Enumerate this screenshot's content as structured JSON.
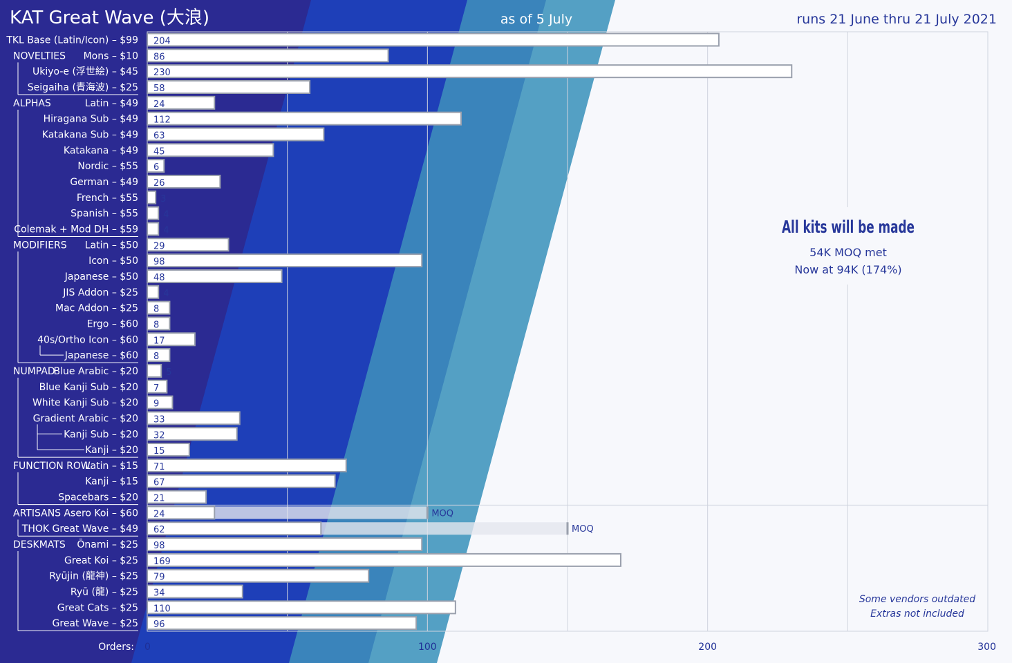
{
  "header": {
    "title": "KAT Great Wave (大浪)",
    "as_of": "as of 5 July",
    "run_dates": "runs 21 June thru 21 July 2021"
  },
  "notes": {
    "headline": "All kits will be made",
    "moq_line1": "54K MOQ met",
    "moq_line2": "Now at 94K (174%)",
    "vendor_line1": "Some vendors outdated",
    "vendor_line2": "Extras not included"
  },
  "colors": {
    "bg_dark": "#2b2a92",
    "band_blue": "#1e3fb8",
    "band_mid": "#3a84bb",
    "band_light": "#54a0c4",
    "plot_bg": "#f7f8fc",
    "bar_fill": "#ffffff",
    "bar_border": "#9aa0ad",
    "text_blue": "#27379a"
  },
  "chart_data": {
    "type": "bar",
    "orientation": "horizontal",
    "xlabel": "Orders:",
    "xlim": [
      0,
      300
    ],
    "xticks": [
      0,
      100,
      200,
      300
    ],
    "grid": true,
    "categories": [
      {
        "group": "",
        "label": "TKL Base (Latin/Icon) – $99",
        "value": 204
      },
      {
        "group": "NOVELTIES",
        "label": "Mons – $10",
        "value": 86
      },
      {
        "group": "",
        "label": "Ukiyo-e (浮世絵) – $45",
        "value": 230
      },
      {
        "group": "",
        "label": "Seigaiha (青海波) – $25",
        "value": 58
      },
      {
        "group": "ALPHAS",
        "label": "Latin – $49",
        "value": 24
      },
      {
        "group": "",
        "label": "Hiragana Sub – $49",
        "value": 112
      },
      {
        "group": "",
        "label": "Katakana Sub – $49",
        "value": 63
      },
      {
        "group": "",
        "label": "Katakana – $49",
        "value": 45
      },
      {
        "group": "",
        "label": "Nordic – $55",
        "value": 6
      },
      {
        "group": "",
        "label": "German – $49",
        "value": 26
      },
      {
        "group": "",
        "label": "French – $55",
        "value": 3
      },
      {
        "group": "",
        "label": "Spanish – $55",
        "value": 4
      },
      {
        "group": "",
        "label": "Colemak + Mod DH – $59",
        "value": 4
      },
      {
        "group": "MODIFIERS",
        "label": "Latin – $50",
        "value": 29
      },
      {
        "group": "",
        "label": "Icon – $50",
        "value": 98
      },
      {
        "group": "",
        "label": "Japanese – $50",
        "value": 48
      },
      {
        "group": "",
        "label": "JIS Addon – $25",
        "value": 4
      },
      {
        "group": "",
        "label": "Mac Addon – $25",
        "value": 8
      },
      {
        "group": "",
        "label": "Ergo – $60",
        "value": 8
      },
      {
        "group": "",
        "label": "40s/Ortho  Icon – $60",
        "value": 17
      },
      {
        "group": "",
        "label": "Japanese – $60",
        "value": 8
      },
      {
        "group": "NUMPAD",
        "label": "Blue Arabic – $20",
        "value": 5
      },
      {
        "group": "",
        "label": "Blue Kanji Sub – $20",
        "value": 7
      },
      {
        "group": "",
        "label": "White Kanji Sub – $20",
        "value": 9
      },
      {
        "group": "",
        "label": "Gradient  Arabic – $20",
        "value": 33
      },
      {
        "group": "",
        "label": "Kanji Sub – $20",
        "value": 32
      },
      {
        "group": "",
        "label": "Kanji – $20",
        "value": 15
      },
      {
        "group": "FUNCTION ROW",
        "label": "Latin – $15",
        "value": 71
      },
      {
        "group": "",
        "label": "Kanji – $15",
        "value": 67
      },
      {
        "group": "",
        "label": "Spacebars – $20",
        "value": 21
      },
      {
        "group": "ARTISANS",
        "label": "Asero Koi – $60",
        "value": 24,
        "moq": 100,
        "moq_label": "MOQ"
      },
      {
        "group": "",
        "label": "THOK Great Wave – $49",
        "value": 62,
        "moq": 150,
        "moq_label": "MOQ"
      },
      {
        "group": "DESKMATS",
        "label": "Ōnami – $25",
        "value": 98
      },
      {
        "group": "",
        "label": "Great Koi – $25",
        "value": 169
      },
      {
        "group": "",
        "label": "Ryūjin (龍神) – $25",
        "value": 79
      },
      {
        "group": "",
        "label": "Ryū (龍) – $25",
        "value": 34
      },
      {
        "group": "",
        "label": "Great Cats – $25",
        "value": 110
      },
      {
        "group": "",
        "label": "Great Wave – $25",
        "value": 96
      }
    ]
  }
}
